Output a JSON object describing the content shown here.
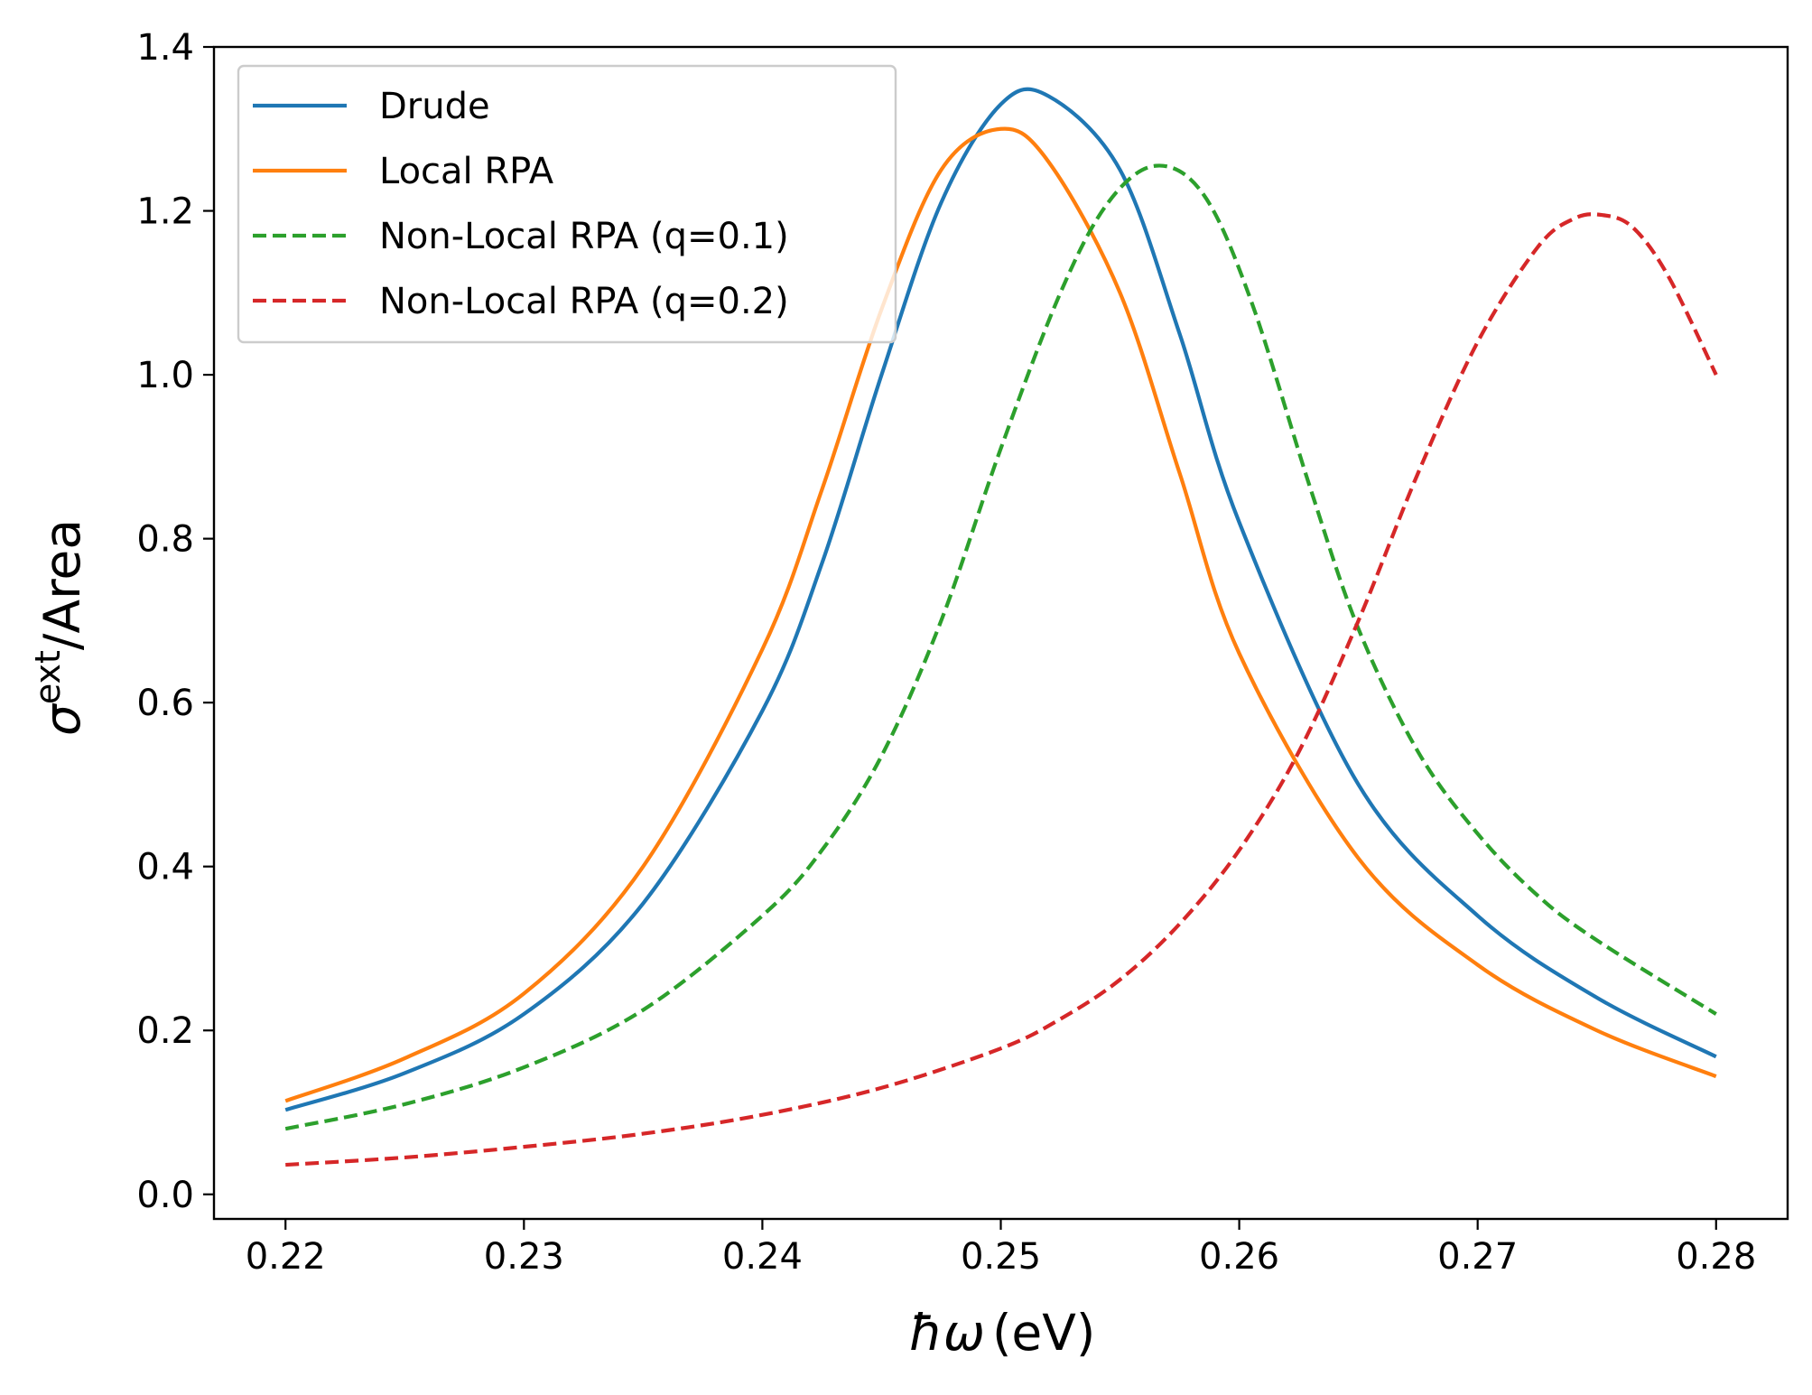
{
  "chart_data": {
    "type": "line",
    "xlabel_main": "ħω",
    "xlabel_unit": "(eV)",
    "ylabel_symbol": "σ",
    "ylabel_sup": "ext",
    "ylabel_rest": "/Area",
    "xlim": [
      0.217,
      0.283
    ],
    "ylim": [
      -0.03,
      1.4
    ],
    "xticks": [
      0.22,
      0.23,
      0.24,
      0.25,
      0.26,
      0.27,
      0.28
    ],
    "xtick_labels": [
      "0.22",
      "0.23",
      "0.24",
      "0.25",
      "0.26",
      "0.27",
      "0.28"
    ],
    "yticks": [
      0.0,
      0.2,
      0.4,
      0.6,
      0.8,
      1.0,
      1.2,
      1.4
    ],
    "ytick_labels": [
      "0.0",
      "0.2",
      "0.4",
      "0.6",
      "0.8",
      "1.0",
      "1.2",
      "1.4"
    ],
    "grid": false,
    "legend_position": "top-left",
    "x": [
      0.22,
      0.225,
      0.23,
      0.235,
      0.24,
      0.2425,
      0.245,
      0.2475,
      0.25,
      0.252,
      0.255,
      0.2575,
      0.26,
      0.265,
      0.27,
      0.275,
      0.28
    ],
    "series": [
      {
        "name": "Drude",
        "color": "#1f77b4",
        "dash": "solid",
        "x": [
          0.22,
          0.225,
          0.23,
          0.235,
          0.24,
          0.2425,
          0.245,
          0.2475,
          0.25,
          0.252,
          0.255,
          0.2575,
          0.26,
          0.265,
          0.27,
          0.275,
          0.28
        ],
        "values": [
          0.103,
          0.148,
          0.22,
          0.355,
          0.59,
          0.77,
          1.0,
          1.21,
          1.33,
          1.34,
          1.25,
          1.05,
          0.82,
          0.5,
          0.34,
          0.24,
          0.168
        ]
      },
      {
        "name": "Local RPA",
        "color": "#ff7f0e",
        "dash": "solid",
        "x": [
          0.22,
          0.225,
          0.23,
          0.235,
          0.24,
          0.2425,
          0.245,
          0.2475,
          0.25,
          0.252,
          0.255,
          0.2575,
          0.26,
          0.265,
          0.27,
          0.275,
          0.28
        ],
        "values": [
          0.114,
          0.166,
          0.245,
          0.4,
          0.665,
          0.86,
          1.08,
          1.25,
          1.3,
          1.26,
          1.1,
          0.88,
          0.66,
          0.41,
          0.28,
          0.2,
          0.144
        ]
      },
      {
        "name": "Non-Local RPA (q=0.1)",
        "color": "#2ca02c",
        "dash": "dashed",
        "x": [
          0.22,
          0.225,
          0.23,
          0.235,
          0.24,
          0.2425,
          0.245,
          0.2475,
          0.25,
          0.2525,
          0.2545,
          0.2565,
          0.2585,
          0.2605,
          0.263,
          0.265,
          0.2675,
          0.27,
          0.2725,
          0.275,
          0.28
        ],
        "values": [
          0.08,
          0.11,
          0.155,
          0.225,
          0.34,
          0.42,
          0.535,
          0.7,
          0.91,
          1.1,
          1.21,
          1.255,
          1.22,
          1.09,
          0.86,
          0.69,
          0.54,
          0.44,
          0.365,
          0.31,
          0.22
        ]
      },
      {
        "name": "Non-Local RPA (q=0.2)",
        "color": "#d62728",
        "dash": "dashed",
        "x": [
          0.22,
          0.225,
          0.23,
          0.235,
          0.24,
          0.245,
          0.25,
          0.2525,
          0.255,
          0.2575,
          0.26,
          0.2625,
          0.265,
          0.2675,
          0.27,
          0.2725,
          0.274,
          0.2752,
          0.2765,
          0.278,
          0.28
        ],
        "values": [
          0.036,
          0.045,
          0.058,
          0.074,
          0.097,
          0.13,
          0.178,
          0.214,
          0.262,
          0.33,
          0.42,
          0.54,
          0.7,
          0.88,
          1.04,
          1.155,
          1.19,
          1.195,
          1.18,
          1.12,
          1.0
        ]
      }
    ]
  }
}
